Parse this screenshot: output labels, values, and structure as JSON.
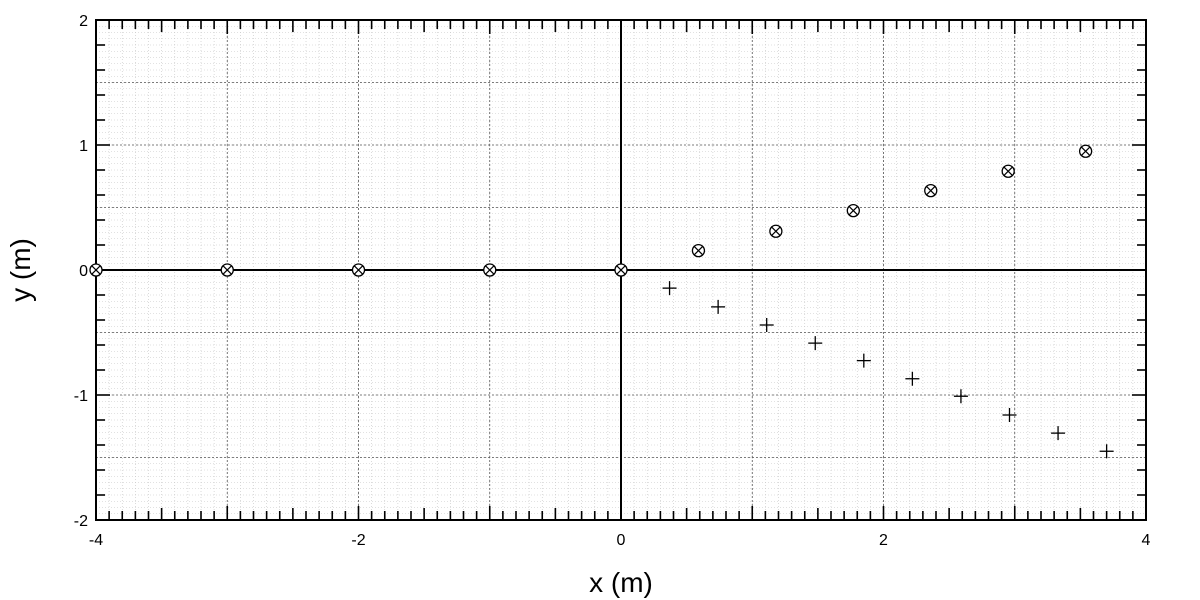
{
  "chart_data": {
    "type": "scatter",
    "title": "",
    "xlabel": "x (m)",
    "ylabel": "y (m)",
    "xlim": [
      -4,
      4
    ],
    "ylim": [
      -2,
      2
    ],
    "x_ticks": [
      "-4",
      "-2",
      "0",
      "2",
      "4"
    ],
    "y_ticks": [
      "-2",
      "-1",
      "0",
      "1",
      "2"
    ],
    "grid": true,
    "minor_grid": true,
    "series": [
      {
        "marker": "circle-cross",
        "points": [
          [
            -4,
            0
          ],
          [
            -3,
            0
          ],
          [
            -2,
            0
          ],
          [
            -1,
            0
          ],
          [
            0,
            0
          ],
          [
            0.59,
            0.155
          ],
          [
            1.18,
            0.31
          ],
          [
            1.77,
            0.475
          ],
          [
            2.36,
            0.635
          ],
          [
            2.95,
            0.79
          ],
          [
            3.54,
            0.95
          ]
        ]
      },
      {
        "marker": "plus",
        "points": [
          [
            0.37,
            -0.145
          ],
          [
            0.74,
            -0.295
          ],
          [
            1.11,
            -0.44
          ],
          [
            1.48,
            -0.585
          ],
          [
            1.85,
            -0.725
          ],
          [
            2.22,
            -0.87
          ],
          [
            2.59,
            -1.01
          ],
          [
            2.96,
            -1.16
          ],
          [
            3.33,
            -1.305
          ],
          [
            3.7,
            -1.45
          ]
        ]
      }
    ]
  }
}
